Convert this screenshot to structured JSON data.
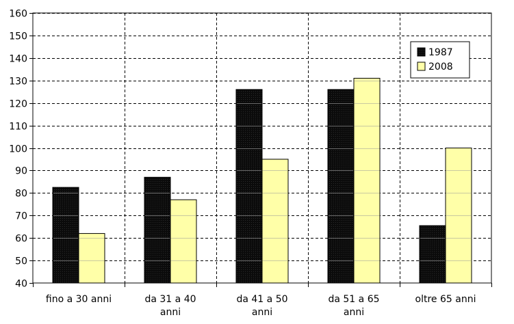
{
  "chart_data": {
    "type": "bar",
    "categories": [
      [
        "fino a 30 anni"
      ],
      [
        "da 31 a 40",
        "anni"
      ],
      [
        "da 41 a 50",
        "anni"
      ],
      [
        "da 51 a 65",
        "anni"
      ],
      [
        "oltre 65 anni"
      ]
    ],
    "series": [
      {
        "name": "1987",
        "color": "#111111",
        "values": [
          82.5,
          87,
          126,
          126,
          65.5
        ]
      },
      {
        "name": "2008",
        "color": "#ffffa8",
        "values": [
          62,
          77,
          95,
          131,
          100
        ]
      }
    ],
    "ylim": [
      40,
      160
    ],
    "yticks": [
      40,
      50,
      60,
      70,
      80,
      90,
      100,
      110,
      120,
      130,
      140,
      150,
      160
    ],
    "grid": true,
    "legend_position": "top-right"
  }
}
